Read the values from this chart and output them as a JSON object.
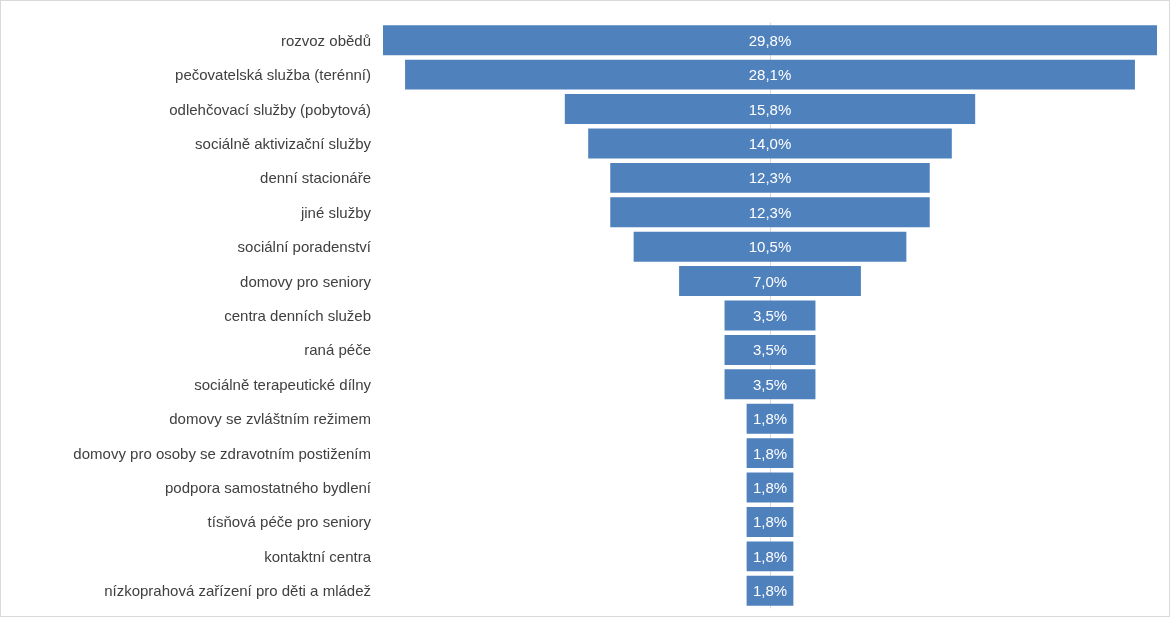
{
  "chart_data": {
    "type": "other",
    "categories": [
      "rozvoz obědů",
      "pečovatelská služba (terénní)",
      "odlehčovací služby (pobytová)",
      "sociálně aktivizační služby",
      "denní stacionáře",
      "jiné služby",
      "sociální poradenství",
      "domovy pro seniory",
      "centra denních služeb",
      "raná péče",
      "sociálně terapeutické dílny",
      "domovy se zvláštním režimem",
      "domovy pro osoby se zdravotním postižením",
      "podpora samostatného bydlení",
      "tísňová péče pro seniory",
      "kontaktní centra",
      "nízkoprahová zařízení pro děti a mládež"
    ],
    "values": [
      29.8,
      28.1,
      15.8,
      14.0,
      12.3,
      12.3,
      10.5,
      7.0,
      3.5,
      3.5,
      3.5,
      1.8,
      1.8,
      1.8,
      1.8,
      1.8,
      1.8
    ],
    "value_labels": [
      "29,8%",
      "28,1%",
      "15,8%",
      "14,0%",
      "12,3%",
      "12,3%",
      "10,5%",
      "7,0%",
      "3,5%",
      "3,5%",
      "3,5%",
      "1,8%",
      "1,8%",
      "1,8%",
      "1,8%",
      "1,8%",
      "1,8%"
    ],
    "color": "#4f81bd"
  }
}
